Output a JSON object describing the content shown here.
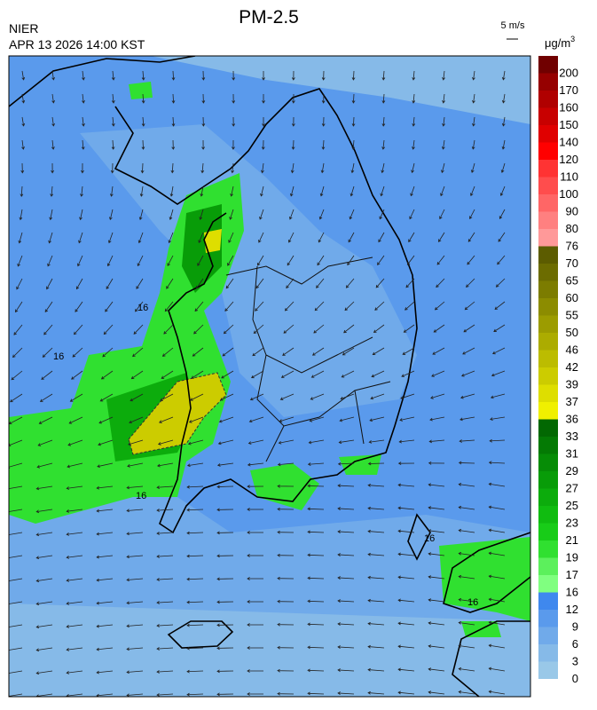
{
  "header": {
    "title": "PM-2.5",
    "agency": "NIER",
    "timestamp": "APR 13 2026 14:00 KST",
    "wind_scale": "5 m/s",
    "unit": "μg/m",
    "unit_power": "3"
  },
  "map": {
    "contour_labels": [
      "16",
      "16",
      "16",
      "16",
      "16"
    ]
  },
  "colorbar": [
    {
      "label": "0",
      "color": "#99c8e8"
    },
    {
      "label": "3",
      "color": "#86bae8"
    },
    {
      "label": "6",
      "color": "#70aaea"
    },
    {
      "label": "9",
      "color": "#5a9aec"
    },
    {
      "label": "12",
      "color": "#3f88ee"
    },
    {
      "label": "16",
      "color": "#80ff80"
    },
    {
      "label": "17",
      "color": "#5cf05c"
    },
    {
      "label": "19",
      "color": "#30e030"
    },
    {
      "label": "21",
      "color": "#18cc18"
    },
    {
      "label": "23",
      "color": "#10bc10"
    },
    {
      "label": "25",
      "color": "#0cac0c"
    },
    {
      "label": "27",
      "color": "#089c08"
    },
    {
      "label": "29",
      "color": "#068c06"
    },
    {
      "label": "31",
      "color": "#047a04"
    },
    {
      "label": "33",
      "color": "#026802"
    },
    {
      "label": "36",
      "color": "#f0f000"
    },
    {
      "label": "37",
      "color": "#dede00"
    },
    {
      "label": "39",
      "color": "#cccc00"
    },
    {
      "label": "42",
      "color": "#bcbc00"
    },
    {
      "label": "46",
      "color": "#acac00"
    },
    {
      "label": "50",
      "color": "#9c9c00"
    },
    {
      "label": "55",
      "color": "#8c8c00"
    },
    {
      "label": "60",
      "color": "#7c7c00"
    },
    {
      "label": "65",
      "color": "#6c6c00"
    },
    {
      "label": "70",
      "color": "#5c5c00"
    },
    {
      "label": "76",
      "color": "#ff9999"
    },
    {
      "label": "80",
      "color": "#ff8080"
    },
    {
      "label": "90",
      "color": "#ff6666"
    },
    {
      "label": "100",
      "color": "#ff4d4d"
    },
    {
      "label": "110",
      "color": "#ff3333"
    },
    {
      "label": "120",
      "color": "#ff0000"
    },
    {
      "label": "140",
      "color": "#e00000"
    },
    {
      "label": "150",
      "color": "#c80000"
    },
    {
      "label": "160",
      "color": "#b00000"
    },
    {
      "label": "170",
      "color": "#960000"
    },
    {
      "label": "200",
      "color": "#700000"
    }
  ]
}
